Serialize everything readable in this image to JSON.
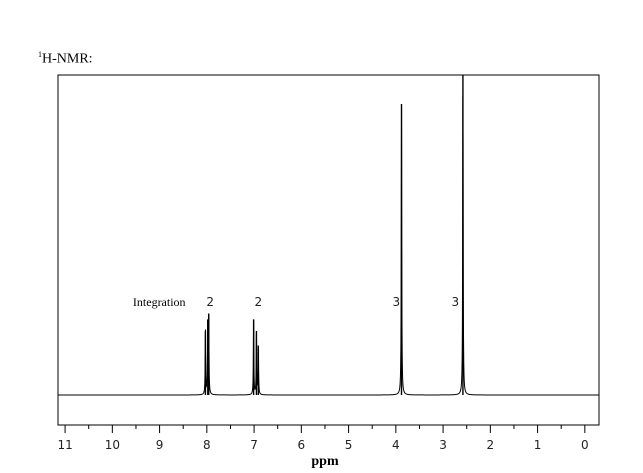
{
  "title_sup": "1",
  "title_main": "H-NMR:",
  "chart_data": {
    "type": "line",
    "xlabel": "ppm",
    "xlim": [
      11.15,
      -0.3
    ],
    "x_reversed": true,
    "ticks": [
      11,
      10,
      9,
      8,
      7,
      6,
      5,
      4,
      3,
      2,
      1,
      0
    ],
    "integration_label": "Integration",
    "peaks": [
      {
        "shift": 8.03,
        "intensity": 0.22,
        "integration": ""
      },
      {
        "shift": 7.98,
        "intensity": 0.26,
        "integration": ""
      },
      {
        "shift": 7.96,
        "intensity": 0.28,
        "integration": "2",
        "label_shift": 7.93
      },
      {
        "shift": 7.01,
        "intensity": 0.26,
        "integration": "2",
        "label_shift": 6.91
      },
      {
        "shift": 6.95,
        "intensity": 0.22,
        "integration": ""
      },
      {
        "shift": 6.91,
        "intensity": 0.17,
        "integration": ""
      },
      {
        "shift": 3.88,
        "intensity": 1.0,
        "integration": "3",
        "label_shift": 3.99
      },
      {
        "shift": 2.58,
        "intensity": 1.1,
        "integration": "3",
        "label_shift": 2.74
      }
    ]
  }
}
